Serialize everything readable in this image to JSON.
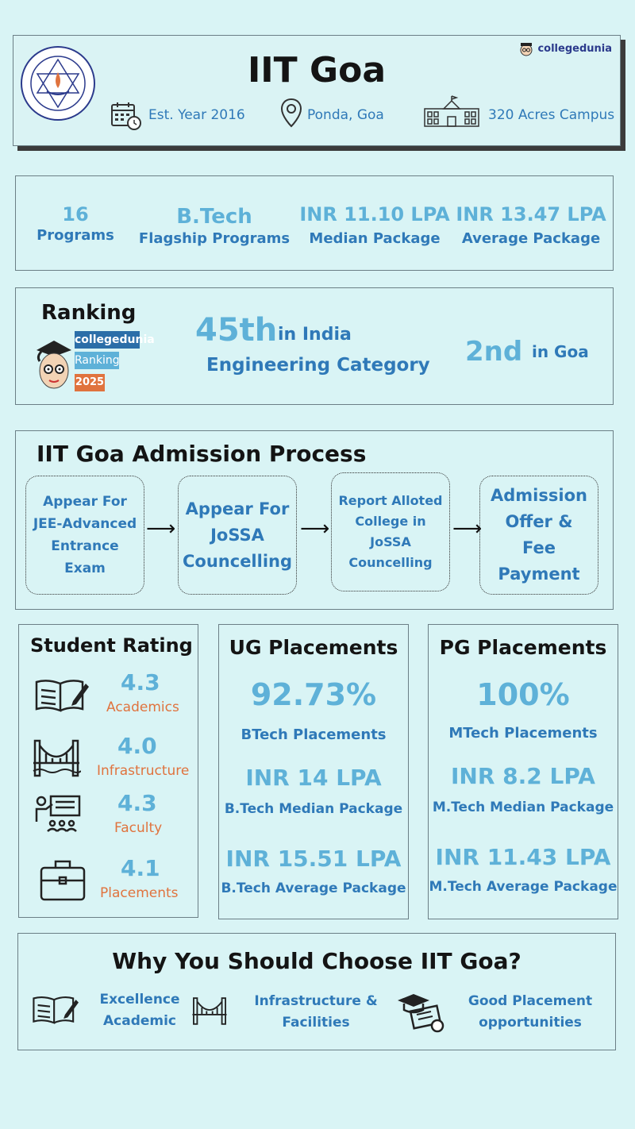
{
  "header": {
    "title": "IIT Goa",
    "brand": "collegedunia",
    "seal_text": "INDIAN INSTITUTE OF TECHNOLOGY GOA",
    "est": "Est. Year 2016",
    "location": "Ponda, Goa",
    "campus": "320 Acres Campus",
    "icons": [
      "calendar-icon",
      "location-pin-icon",
      "campus-building-icon"
    ]
  },
  "stats": [
    {
      "value": "16",
      "label": "Programs"
    },
    {
      "value": "B.Tech",
      "label": "Flagship Programs"
    },
    {
      "value": "INR 11.10 LPA",
      "label": "Median Package"
    },
    {
      "value": "INR 13.47 LPA",
      "label": "Average Package"
    }
  ],
  "ranking": {
    "title": "Ranking",
    "badge": [
      "collegedunia",
      "Ranking",
      "2025"
    ],
    "rank_india": "45th",
    "in_india": "in India",
    "category": "Engineering Category",
    "rank_goa": "2nd",
    "in_goa": "in Goa"
  },
  "admission": {
    "title": "IIT Goa Admission Process",
    "steps": [
      "Appear For JEE-Advanced Entrance Exam",
      "Appear For JoSSA Councelling",
      "Report Alloted College in JoSSA Councelling",
      "Admission Offer & Fee Payment"
    ]
  },
  "rating": {
    "title": "Student Rating",
    "items": [
      {
        "value": "4.3",
        "label": "Academics",
        "icon": "book-icon"
      },
      {
        "value": "4.0",
        "label": "Infrastructure",
        "icon": "bridge-icon"
      },
      {
        "value": "4.3",
        "label": "Faculty",
        "icon": "teacher-icon"
      },
      {
        "value": "4.1",
        "label": "Placements",
        "icon": "briefcase-icon"
      }
    ]
  },
  "ug": {
    "title": "UG Placements",
    "pct": "92.73%",
    "pct_label": "BTech Placements",
    "median": "INR 14 LPA",
    "median_label": "B.Tech Median Package",
    "avg": "INR 15.51 LPA",
    "avg_label": "B.Tech Average Package"
  },
  "pg": {
    "title": "PG Placements",
    "pct": "100%",
    "pct_label": "MTech Placements",
    "median": "INR 8.2 LPA",
    "median_label": "M.Tech Median Package",
    "avg": "INR 11.43 LPA",
    "avg_label": "M.Tech Average Package"
  },
  "why": {
    "title": "Why You Should Choose IIT Goa?",
    "items": [
      {
        "label1": "Excellence",
        "label2": "Academic",
        "icon": "book-icon"
      },
      {
        "label1": "Infrastructure &",
        "label2": "Facilities",
        "icon": "bridge-icon"
      },
      {
        "label1": "Good Placement",
        "label2": "opportunities",
        "icon": "graduation-certificate-icon"
      }
    ]
  }
}
